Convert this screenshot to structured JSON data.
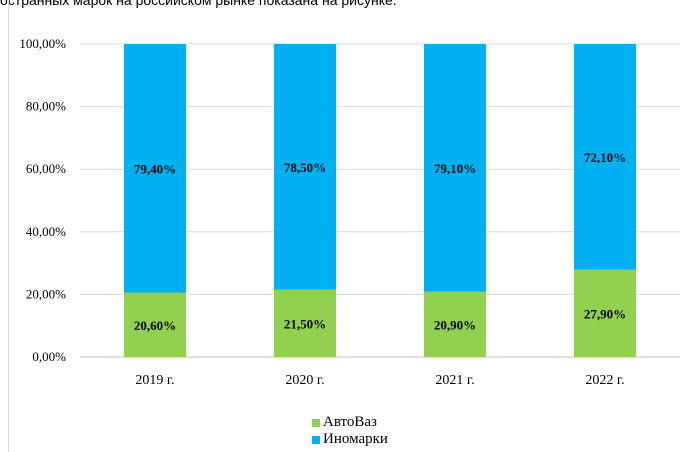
{
  "caption": "остранных марок на российском рынке показана на рисунке.",
  "colors": {
    "avtovaz": "#92d050",
    "inomarki": "#00b0f0",
    "grid": "#d9d9d9"
  },
  "chart_data": {
    "type": "bar",
    "stacked": true,
    "categories": [
      "2019 г.",
      "2020 г.",
      "2021 г.",
      "2022 г."
    ],
    "series": [
      {
        "name": "АвтоВаз",
        "values": [
          20.6,
          21.5,
          20.9,
          27.9
        ],
        "labels": [
          "20,60%",
          "21,50%",
          "20,90%",
          "27,90%"
        ]
      },
      {
        "name": "Иномарки",
        "values": [
          79.4,
          78.5,
          79.1,
          72.1
        ],
        "labels": [
          "79,40%",
          "78,50%",
          "79,10%",
          "72,10%"
        ]
      }
    ],
    "ylim": [
      0,
      100
    ],
    "yticks": [
      0,
      20,
      40,
      60,
      80,
      100
    ],
    "ytick_labels": [
      "0,00%",
      "20,00%",
      "40,00%",
      "60,00%",
      "80,00%",
      "100,00%"
    ],
    "grid": true,
    "legend_position": "bottom"
  }
}
